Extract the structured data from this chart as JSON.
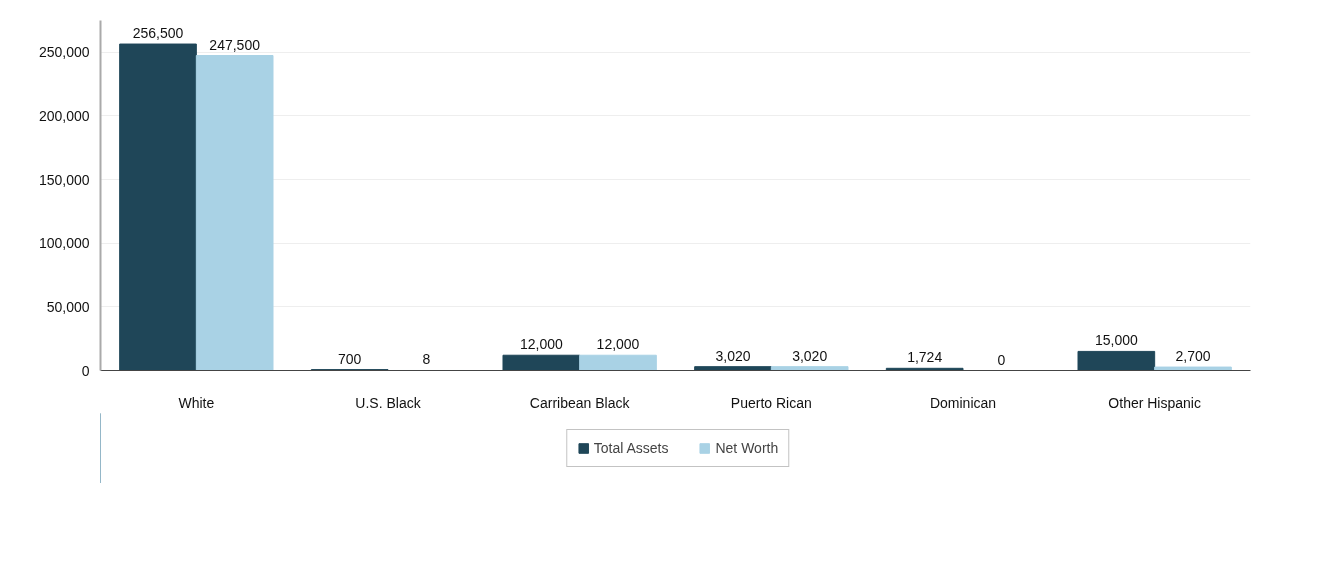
{
  "chart_data": {
    "type": "bar",
    "categories": [
      "White",
      "U.S. Black",
      "Carribean Black",
      "Puerto Rican",
      "Dominican",
      "Other Hispanic"
    ],
    "series": [
      {
        "name": "Total Assets",
        "color": "#1f4658",
        "values": [
          256500,
          700,
          12000,
          3020,
          1724,
          15000
        ],
        "value_labels": [
          "256,500",
          "700",
          "12,000",
          "3,020",
          "1,724",
          "15,000"
        ]
      },
      {
        "name": "Net Worth",
        "color": "#a9d2e5",
        "values": [
          247500,
          8,
          12000,
          3020,
          0,
          2700
        ],
        "value_labels": [
          "247,500",
          "8",
          "12,000",
          "3,020",
          "0",
          "2,700"
        ]
      }
    ],
    "ylim": [
      0,
      275000
    ],
    "yticks": [
      {
        "value": 0,
        "label": "0"
      },
      {
        "value": 50000,
        "label": "50,000"
      },
      {
        "value": 100000,
        "label": "100,000"
      },
      {
        "value": 150000,
        "label": "150,000"
      },
      {
        "value": 200000,
        "label": "200,000"
      },
      {
        "value": 250000,
        "label": "250,000"
      }
    ],
    "grid": "y",
    "legend": "bottom"
  }
}
